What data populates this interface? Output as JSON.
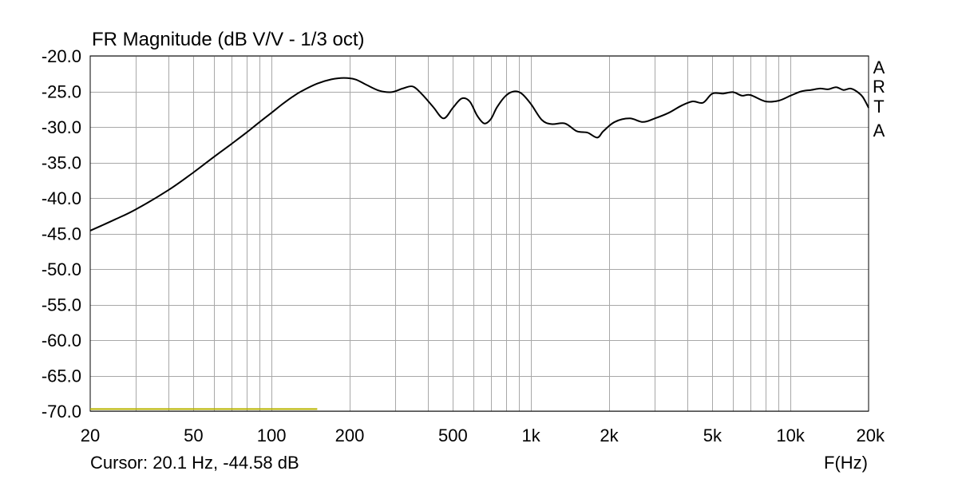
{
  "chart_data": {
    "type": "line",
    "title": "FR Magnitude (dB V/V - 1/3 oct)",
    "xlabel": "F(Hz)",
    "ylabel": "",
    "x_scale": "log",
    "xlim": [
      20,
      20000
    ],
    "ylim": [
      -70,
      -20
    ],
    "grid": true,
    "x_tick_values": [
      20,
      50,
      100,
      200,
      500,
      1000,
      2000,
      5000,
      10000,
      20000
    ],
    "x_tick_labels": [
      "20",
      "50",
      "100",
      "200",
      "500",
      "1k",
      "2k",
      "5k",
      "10k",
      "20k"
    ],
    "y_tick_values": [
      -20,
      -25,
      -30,
      -35,
      -40,
      -45,
      -50,
      -55,
      -60,
      -65,
      -70
    ],
    "y_tick_labels": [
      "-20.0",
      "-25.0",
      "-30.0",
      "-35.0",
      "-40.0",
      "-45.0",
      "-50.0",
      "-55.0",
      "-60.0",
      "-65.0",
      "-70.0"
    ],
    "series": [
      {
        "color": "#000000",
        "x": [
          20,
          25,
          30,
          40,
          50,
          60,
          70,
          80,
          90,
          100,
          110,
          120,
          130,
          150,
          170,
          190,
          210,
          230,
          260,
          290,
          320,
          350,
          380,
          420,
          460,
          500,
          540,
          580,
          620,
          660,
          700,
          740,
          800,
          860,
          920,
          1000,
          1100,
          1200,
          1350,
          1500,
          1650,
          1800,
          1900,
          2100,
          2400,
          2700,
          3000,
          3400,
          3800,
          4200,
          4600,
          5000,
          5500,
          6000,
          6500,
          7000,
          8000,
          9000,
          10000,
          11000,
          12000,
          13000,
          14000,
          15000,
          16000,
          17000,
          18000,
          19000,
          20000
        ],
        "y": [
          -44.6,
          -43.0,
          -41.6,
          -38.9,
          -36.4,
          -34.2,
          -32.4,
          -30.8,
          -29.3,
          -28.0,
          -26.8,
          -25.8,
          -25.0,
          -23.9,
          -23.3,
          -23.1,
          -23.3,
          -24.0,
          -24.9,
          -25.1,
          -24.6,
          -24.3,
          -25.4,
          -27.2,
          -28.8,
          -27.3,
          -26.0,
          -26.4,
          -28.4,
          -29.5,
          -28.9,
          -27.2,
          -25.6,
          -25.0,
          -25.3,
          -26.8,
          -29.0,
          -29.6,
          -29.5,
          -30.6,
          -30.8,
          -31.5,
          -30.6,
          -29.3,
          -28.8,
          -29.3,
          -28.8,
          -28.0,
          -27.0,
          -26.4,
          -26.6,
          -25.3,
          -25.3,
          -25.1,
          -25.6,
          -25.5,
          -26.4,
          -26.3,
          -25.6,
          -25.0,
          -24.8,
          -24.6,
          -24.7,
          -24.4,
          -24.8,
          -24.6,
          -25.0,
          -25.8,
          -27.3
        ]
      }
    ],
    "cursor_line": {
      "color": "#b8b400",
      "x_start": 20,
      "x_end": 150,
      "y": -69.7
    },
    "side_label_letters": [
      "A",
      "R",
      "T",
      "A"
    ],
    "cursor_text": "Cursor: 20.1 Hz, -44.58 dB"
  }
}
